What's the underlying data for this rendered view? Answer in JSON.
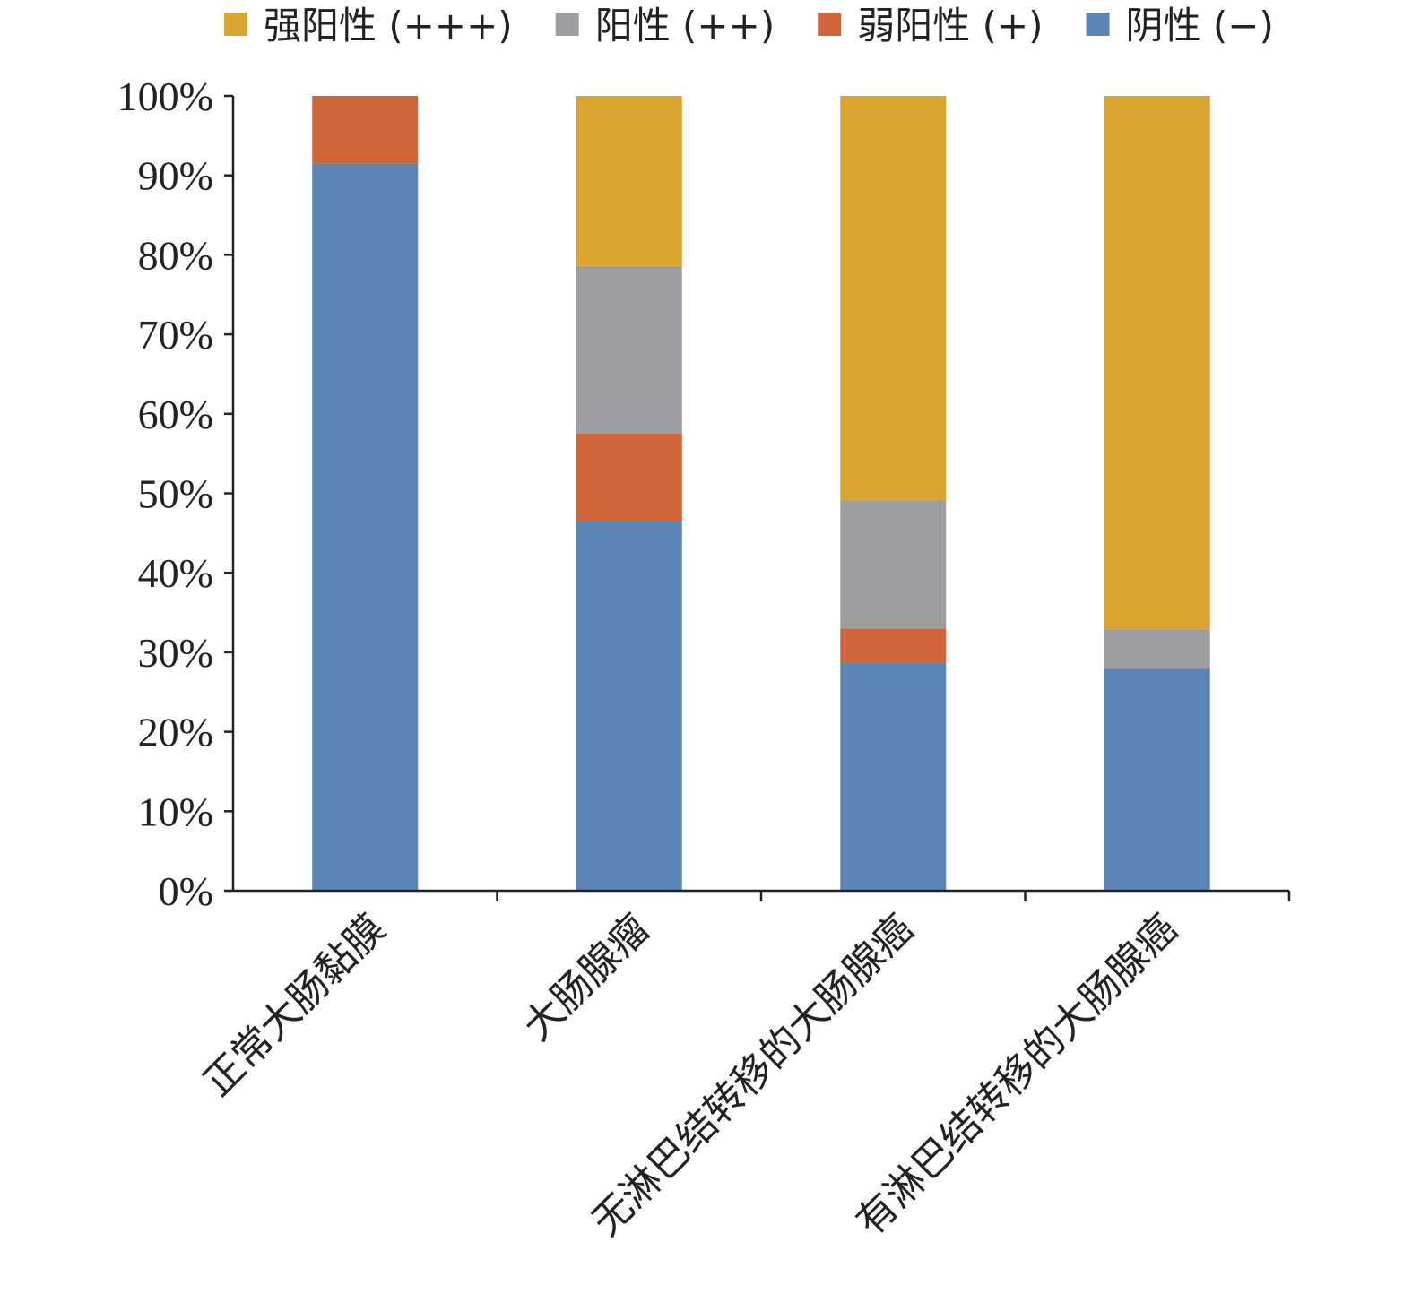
{
  "chart_data": {
    "type": "bar",
    "stacked": true,
    "percent": true,
    "categories": [
      "正常大肠黏膜",
      "大肠腺瘤",
      "无淋巴结转移的大肠腺癌",
      "有淋巴结转移的大肠腺癌"
    ],
    "series": [
      {
        "name": "阴性 (−)",
        "color": "#5b85b6",
        "values": [
          91.5,
          46.5,
          28.7,
          27.9
        ]
      },
      {
        "name": "弱阳性 (+)",
        "color": "#d2643a",
        "values": [
          8.5,
          11.0,
          4.3,
          0
        ]
      },
      {
        "name": "阳性 (++)",
        "color": "#9d9ea1",
        "values": [
          0,
          21.1,
          16.1,
          5.0
        ]
      },
      {
        "name": "强阳性 (+++)",
        "color": "#dba430",
        "values": [
          0,
          21.4,
          50.9,
          67.1
        ]
      }
    ],
    "legend_order": [
      3,
      2,
      1,
      0
    ],
    "legend_position": "top",
    "ylim": [
      0,
      100
    ],
    "y_ticks": [
      "0%",
      "10%",
      "20%",
      "30%",
      "40%",
      "50%",
      "60%",
      "70%",
      "80%",
      "90%",
      "100%"
    ],
    "grid": false,
    "title": "",
    "xlabel": "",
    "ylabel": ""
  }
}
